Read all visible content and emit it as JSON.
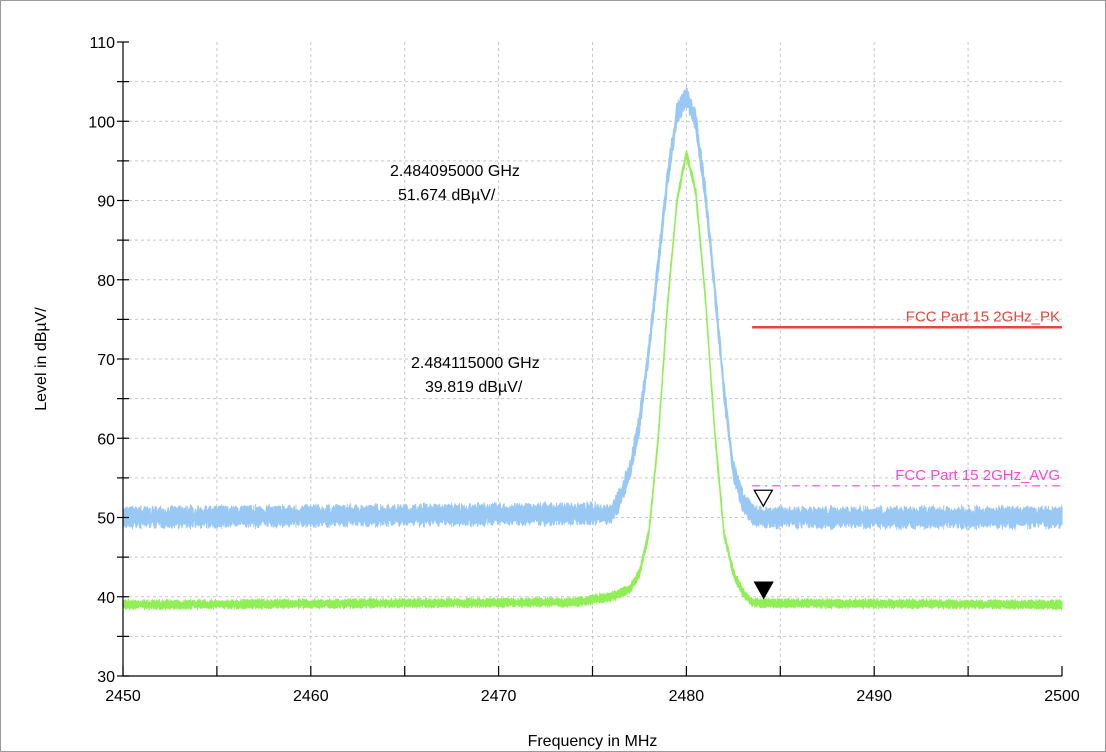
{
  "chart_data": {
    "type": "line",
    "title": "",
    "xlabel": "Frequency in MHz",
    "ylabel": "Level in dBµV/",
    "xlim": [
      2450,
      2500
    ],
    "ylim": [
      30,
      110
    ],
    "x_ticks": [
      2450,
      2460,
      2470,
      2480,
      2490,
      2500
    ],
    "y_ticks": [
      30,
      40,
      50,
      60,
      70,
      80,
      90,
      100,
      110
    ],
    "grid": true,
    "series": [
      {
        "color": "#99c8f5",
        "x": [
          2450,
          2476,
          2476.5,
          2477,
          2477.5,
          2478,
          2478.5,
          2479,
          2479.5,
          2480,
          2480.5,
          2481,
          2481.5,
          2482,
          2482.5,
          2483,
          2483.5,
          2484,
          2500
        ],
        "y": [
          50.0,
          50.5,
          52.5,
          56,
          62,
          71,
          82,
          93,
          101,
          103,
          100,
          91,
          79,
          66,
          56,
          52,
          50.5,
          50.0,
          50.0
        ]
      },
      {
        "color": "#90ee56",
        "x": [
          2450,
          2474,
          2476,
          2477,
          2477.5,
          2478,
          2478.5,
          2479,
          2479.5,
          2480,
          2480.5,
          2481,
          2481.5,
          2482,
          2482.5,
          2483,
          2483.5,
          2484,
          2500
        ],
        "y": [
          39.0,
          39.3,
          40.0,
          41.0,
          43.0,
          48,
          60,
          77,
          90,
          96,
          91,
          78,
          61,
          48,
          43,
          40.5,
          39.3,
          39.2,
          39.0
        ]
      }
    ],
    "limit_lines": [
      {
        "name": "FCC Part 15 2GHz_PK",
        "color": "#e8453c",
        "x_start": 2483.5,
        "x_end": 2500,
        "y": 74
      },
      {
        "name": "FCC Part 15 2GHz_AVG",
        "color": "#ff44dd",
        "x_start": 2483.5,
        "x_end": 2500,
        "y": 54
      }
    ],
    "markers": [
      {
        "x": 2484.095,
        "y": 51.674,
        "style": "hollow",
        "freq_label": "2.484095000 GHz",
        "level_label": "51.674 dBµV/"
      },
      {
        "x": 2484.115,
        "y": 39.819,
        "style": "filled",
        "freq_label": "2.484115000 GHz",
        "level_label": "39.819 dBµV/"
      }
    ]
  }
}
